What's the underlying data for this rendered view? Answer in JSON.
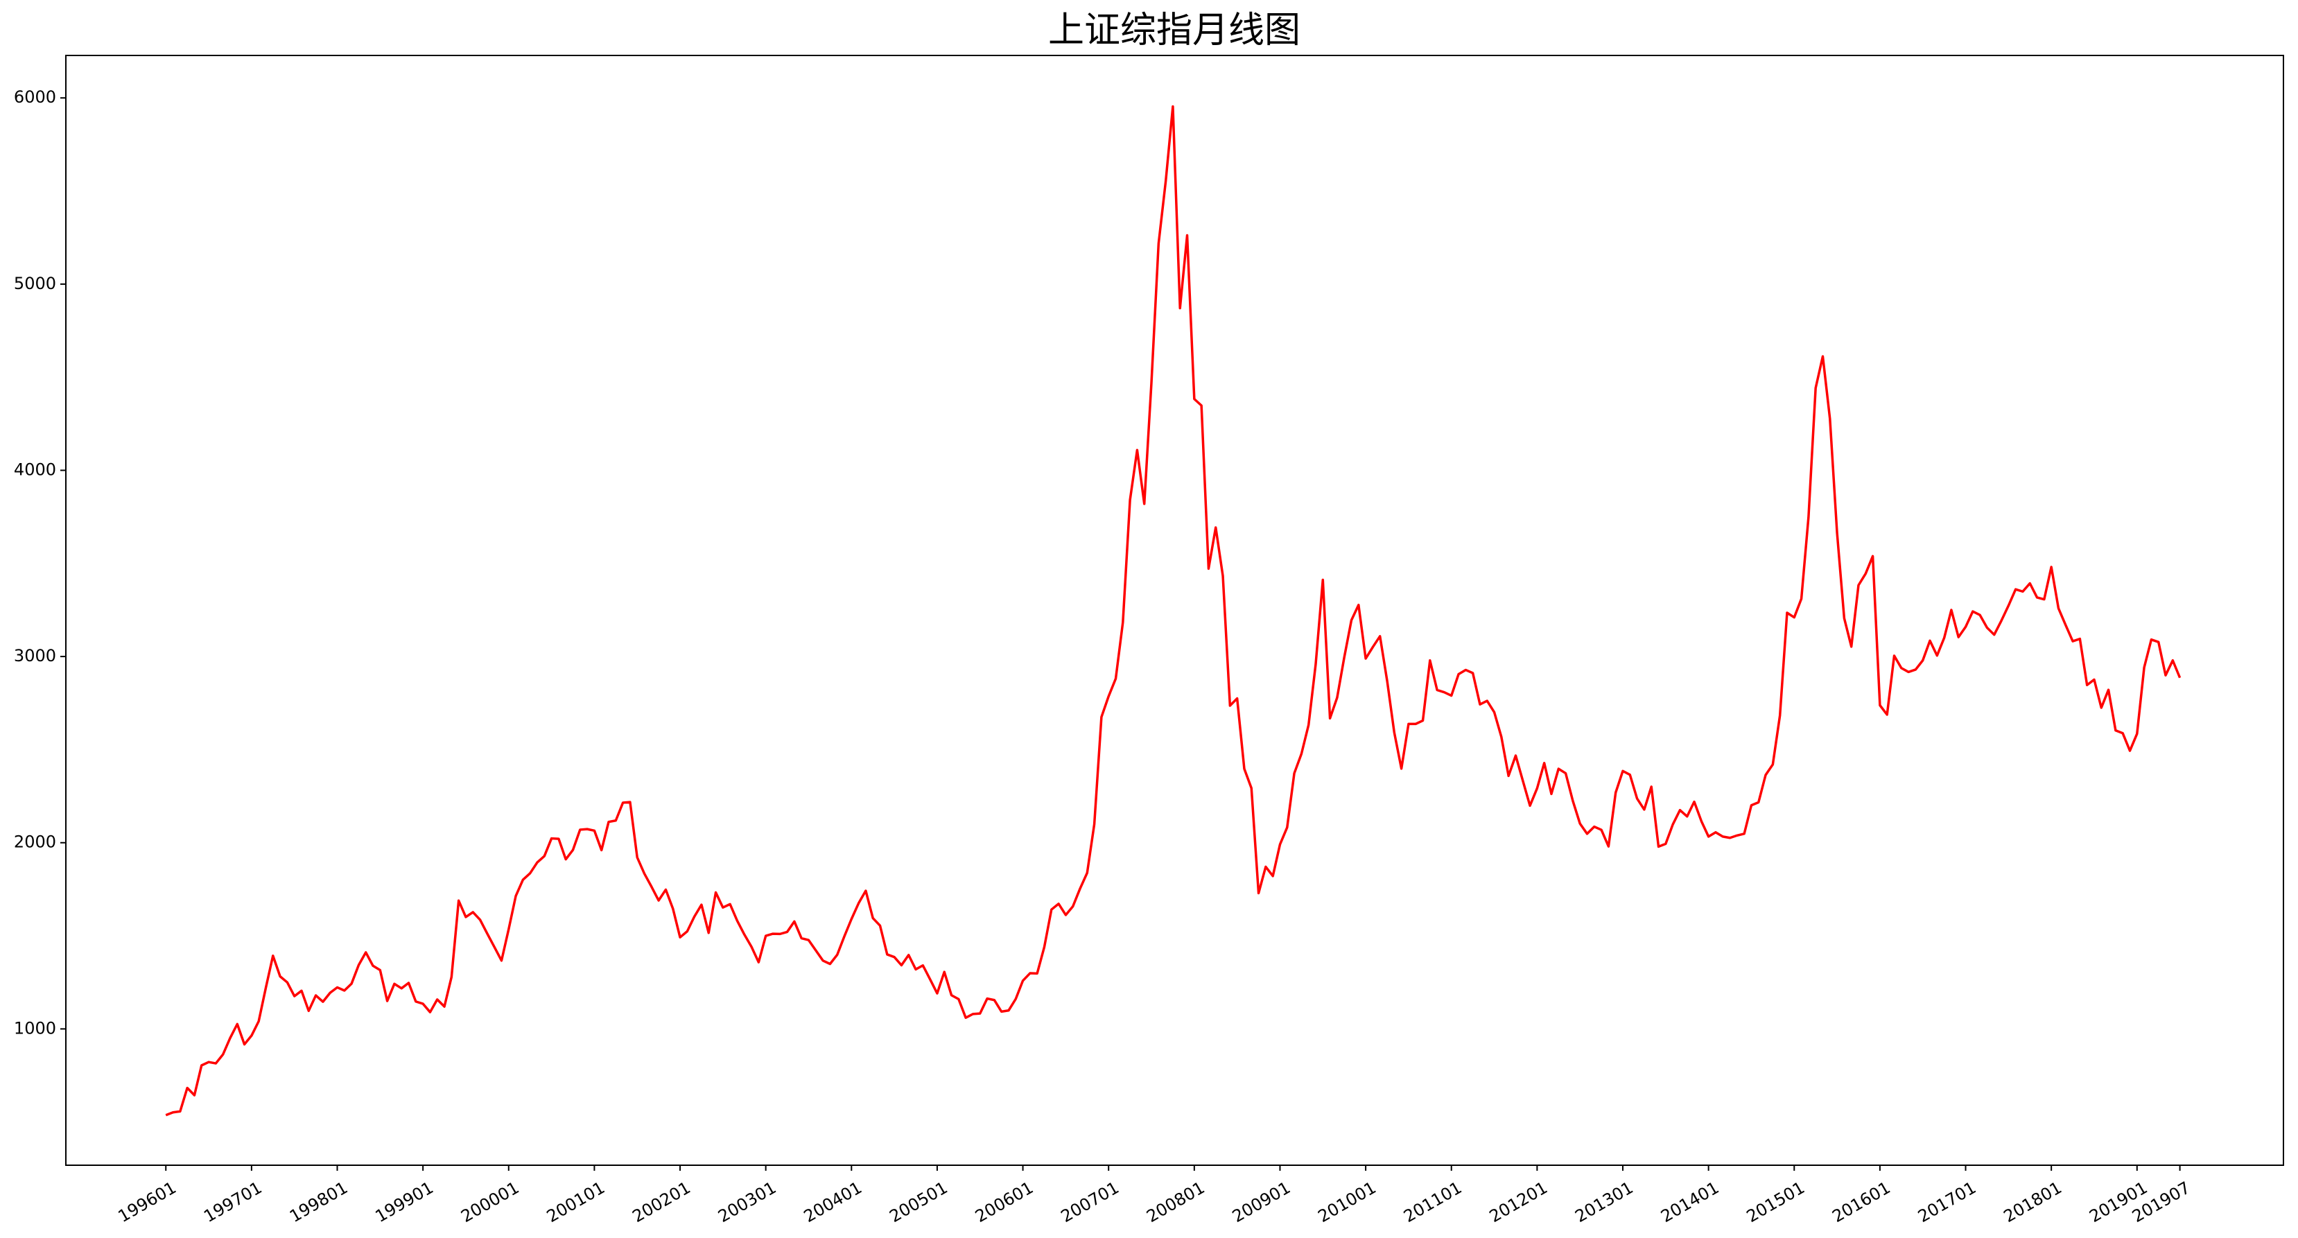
{
  "chart_data": {
    "type": "line",
    "title": "上证综指月线图",
    "color": "#ff0000",
    "categories": [
      "199601",
      null,
      null,
      null,
      null,
      null,
      null,
      null,
      null,
      null,
      null,
      null,
      "199701",
      null,
      null,
      null,
      null,
      null,
      null,
      null,
      null,
      null,
      null,
      null,
      "199801",
      null,
      null,
      null,
      null,
      null,
      null,
      null,
      null,
      null,
      null,
      null,
      "199901",
      null,
      null,
      null,
      null,
      null,
      null,
      null,
      null,
      null,
      null,
      null,
      "200001",
      null,
      null,
      null,
      null,
      null,
      null,
      null,
      null,
      null,
      null,
      null,
      "200101",
      null,
      null,
      null,
      null,
      null,
      null,
      null,
      null,
      null,
      null,
      null,
      "200201",
      null,
      null,
      null,
      null,
      null,
      null,
      null,
      null,
      null,
      null,
      null,
      "200301",
      null,
      null,
      null,
      null,
      null,
      null,
      null,
      null,
      null,
      null,
      null,
      "200401",
      null,
      null,
      null,
      null,
      null,
      null,
      null,
      null,
      null,
      null,
      null,
      "200501",
      null,
      null,
      null,
      null,
      null,
      null,
      null,
      null,
      null,
      null,
      null,
      "200601",
      null,
      null,
      null,
      null,
      null,
      null,
      null,
      null,
      null,
      null,
      null,
      "200701",
      null,
      null,
      null,
      null,
      null,
      null,
      null,
      null,
      null,
      null,
      null,
      "200801",
      null,
      null,
      null,
      null,
      null,
      null,
      null,
      null,
      null,
      null,
      null,
      "200901",
      null,
      null,
      null,
      null,
      null,
      null,
      null,
      null,
      null,
      null,
      null,
      "201001",
      null,
      null,
      null,
      null,
      null,
      null,
      null,
      null,
      null,
      null,
      null,
      "201101",
      null,
      null,
      null,
      null,
      null,
      null,
      null,
      null,
      null,
      null,
      null,
      "201201",
      null,
      null,
      null,
      null,
      null,
      null,
      null,
      null,
      null,
      null,
      null,
      "201301",
      null,
      null,
      null,
      null,
      null,
      null,
      null,
      null,
      null,
      null,
      null,
      "201401",
      null,
      null,
      null,
      null,
      null,
      null,
      null,
      null,
      null,
      null,
      null,
      "201501",
      null,
      null,
      null,
      null,
      null,
      null,
      null,
      null,
      null,
      null,
      null,
      "201601",
      null,
      null,
      null,
      null,
      null,
      null,
      null,
      null,
      null,
      null,
      null,
      "201701",
      null,
      null,
      null,
      null,
      null,
      null,
      null,
      null,
      null,
      null,
      null,
      "201801",
      null,
      null,
      null,
      null,
      null,
      null,
      null,
      null,
      null,
      null,
      null,
      "201901",
      null,
      null,
      null,
      null,
      null,
      "201907"
    ],
    "values": [
      537,
      552,
      557,
      683,
      644,
      804,
      822,
      815,
      863,
      951,
      1026,
      917,
      964,
      1041,
      1221,
      1393,
      1282,
      1250,
      1176,
      1205,
      1097,
      1180,
      1146,
      1194,
      1223,
      1206,
      1243,
      1343,
      1411,
      1339,
      1316,
      1150,
      1242,
      1218,
      1247,
      1147,
      1135,
      1090,
      1158,
      1120,
      1279,
      1689,
      1601,
      1627,
      1586,
      1512,
      1440,
      1367,
      1535,
      1714,
      1801,
      1836,
      1894,
      1928,
      2023,
      2021,
      1911,
      1961,
      2070,
      2073,
      2065,
      1960,
      2112,
      2119,
      2215,
      2218,
      1921,
      1834,
      1764,
      1690,
      1748,
      1646,
      1492,
      1524,
      1603,
      1667,
      1516,
      1733,
      1652,
      1670,
      1581,
      1507,
      1441,
      1358,
      1500,
      1511,
      1510,
      1521,
      1577,
      1487,
      1477,
      1422,
      1367,
      1349,
      1398,
      1497,
      1590,
      1675,
      1742,
      1595,
      1555,
      1400,
      1386,
      1342,
      1397,
      1320,
      1341,
      1267,
      1191,
      1306,
      1181,
      1160,
      1060,
      1080,
      1083,
      1163,
      1155,
      1093,
      1099,
      1161,
      1259,
      1299,
      1298,
      1440,
      1641,
      1672,
      1612,
      1658,
      1753,
      1838,
      2099,
      2675,
      2786,
      2881,
      3183,
      3841,
      4109,
      3820,
      4471,
      5218,
      5552,
      5954,
      4871,
      5262,
      4383,
      4348,
      3472,
      3693,
      3433,
      2736,
      2775,
      2397,
      2293,
      1729,
      1871,
      1821,
      1991,
      2082,
      2373,
      2477,
      2632,
      2959,
      3412,
      2668,
      2779,
      2996,
      3195,
      3277,
      2989,
      3051,
      3109,
      2870,
      2592,
      2398,
      2638,
      2638,
      2656,
      2979,
      2820,
      2808,
      2790,
      2905,
      2928,
      2911,
      2743,
      2762,
      2701,
      2568,
      2359,
      2468,
      2333,
      2199,
      2292,
      2428,
      2262,
      2397,
      2373,
      2225,
      2103,
      2048,
      2086,
      2069,
      1980,
      2269,
      2385,
      2365,
      2237,
      2178,
      2301,
      1979,
      1994,
      2098,
      2175,
      2141,
      2220,
      2116,
      2033,
      2056,
      2033,
      2026,
      2039,
      2048,
      2201,
      2217,
      2364,
      2420,
      2683,
      3235,
      3210,
      3310,
      3748,
      4442,
      4612,
      4277,
      3664,
      3206,
      3053,
      3383,
      3445,
      3539,
      2738,
      2688,
      3004,
      2938,
      2917,
      2930,
      2979,
      3085,
      3005,
      3100,
      3250,
      3104,
      3159,
      3242,
      3223,
      3155,
      3117,
      3192,
      3273,
      3361,
      3349,
      3393,
      3317,
      3307,
      3481,
      3259,
      3169,
      3082,
      3095,
      2847,
      2876,
      2725,
      2821,
      2603,
      2588,
      2494,
      2585,
      2941,
      3091,
      3078,
      2899,
      2979,
      2886
    ],
    "ylim": [
      268,
      6228
    ],
    "yticks": [
      1000,
      2000,
      3000,
      4000,
      5000,
      6000
    ],
    "grid": false
  }
}
